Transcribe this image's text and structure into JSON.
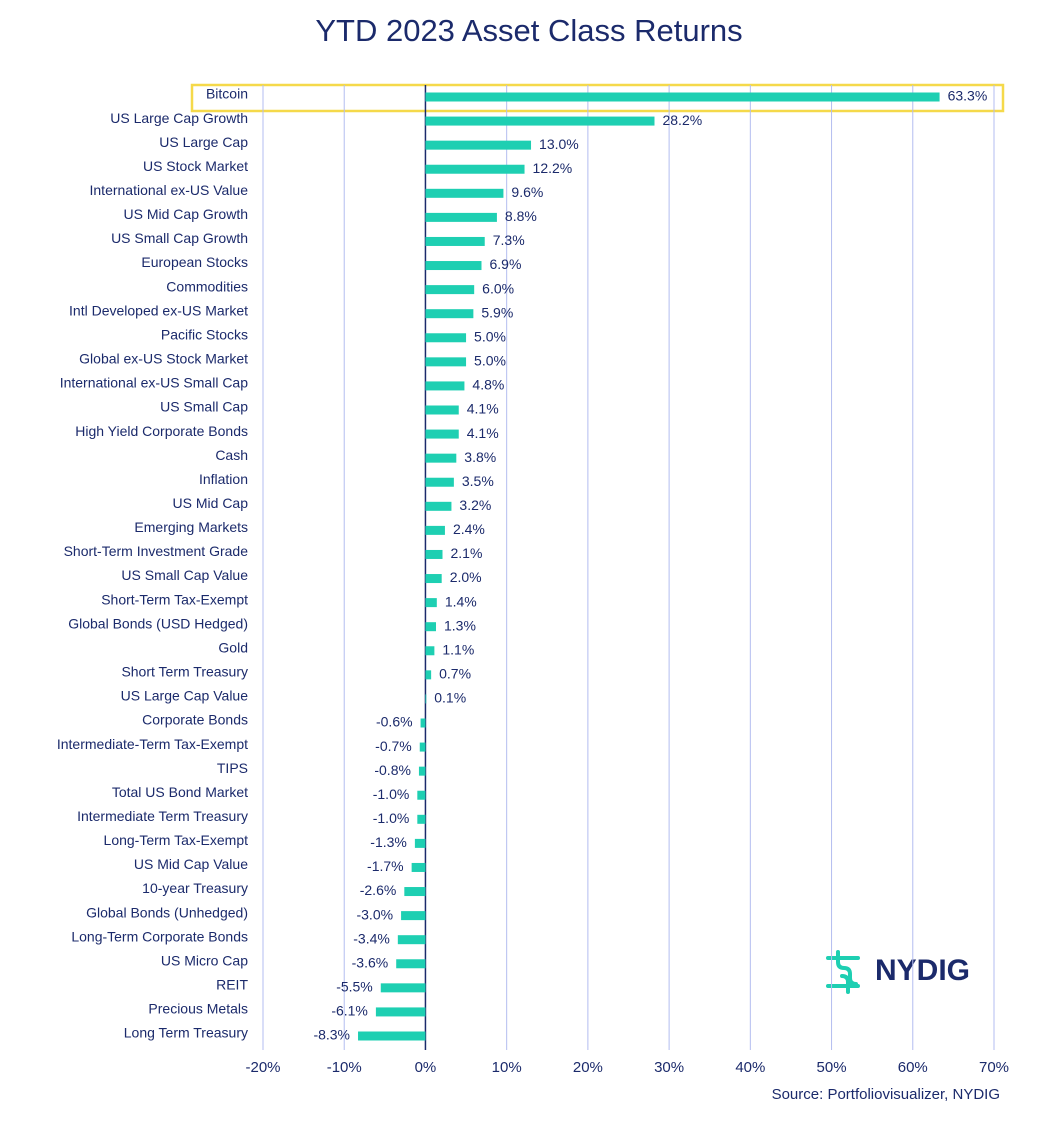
{
  "chart_data": {
    "type": "bar",
    "orientation": "horizontal",
    "title": "YTD 2023 Asset Class Returns",
    "categories": [
      "Bitcoin",
      "US Large Cap Growth",
      "US Large Cap",
      "US Stock Market",
      "International ex-US Value",
      "US Mid Cap Growth",
      "US Small Cap Growth",
      "European Stocks",
      "Commodities",
      "Intl Developed ex-US Market",
      "Pacific Stocks",
      "Global ex-US Stock Market",
      "International ex-US Small Cap",
      "US Small Cap",
      "High Yield Corporate Bonds",
      "Cash",
      "Inflation",
      "US Mid Cap",
      "Emerging Markets",
      "Short-Term Investment Grade",
      "US Small Cap Value",
      "Short-Term Tax-Exempt",
      "Global Bonds (USD Hedged)",
      "Gold",
      "Short Term Treasury",
      "US Large Cap Value",
      "Corporate Bonds",
      "Intermediate-Term Tax-Exempt",
      "TIPS",
      "Total US Bond Market",
      "Intermediate Term Treasury",
      "Long-Term Tax-Exempt",
      "US Mid Cap Value",
      "10-year Treasury",
      "Global Bonds (Unhedged)",
      "Long-Term Corporate Bonds",
      "US Micro Cap",
      "REIT",
      "Precious Metals",
      "Long Term Treasury"
    ],
    "values": [
      63.3,
      28.2,
      13.0,
      12.2,
      9.6,
      8.8,
      7.3,
      6.9,
      6.0,
      5.9,
      5.0,
      5.0,
      4.8,
      4.1,
      4.1,
      3.8,
      3.5,
      3.2,
      2.4,
      2.1,
      2.0,
      1.4,
      1.3,
      1.1,
      0.7,
      0.1,
      -0.6,
      -0.7,
      -0.8,
      -1.0,
      -1.0,
      -1.3,
      -1.7,
      -2.6,
      -3.0,
      -3.4,
      -3.6,
      -5.5,
      -6.1,
      -8.3
    ],
    "value_labels": [
      "63.3%",
      "28.2%",
      "13.0%",
      "12.2%",
      "9.6%",
      "8.8%",
      "7.3%",
      "6.9%",
      "6.0%",
      "5.9%",
      "5.0%",
      "5.0%",
      "4.8%",
      "4.1%",
      "4.1%",
      "3.8%",
      "3.5%",
      "3.2%",
      "2.4%",
      "2.1%",
      "2.0%",
      "1.4%",
      "1.3%",
      "1.1%",
      "0.7%",
      "0.1%",
      "-0.6%",
      "-0.7%",
      "-0.8%",
      "-1.0%",
      "-1.0%",
      "-1.3%",
      "-1.7%",
      "-2.6%",
      "-3.0%",
      "-3.4%",
      "-3.6%",
      "-5.5%",
      "-6.1%",
      "-8.3%"
    ],
    "color": "#1ecfb2",
    "xlim": [
      -20,
      70
    ],
    "xticks": [
      {
        "value": -20,
        "label": "-20%"
      },
      {
        "value": -10,
        "label": "-10%"
      },
      {
        "value": 0,
        "label": "0%"
      },
      {
        "value": 10,
        "label": "10%"
      },
      {
        "value": 20,
        "label": "20%"
      },
      {
        "value": 30,
        "label": "30%"
      },
      {
        "value": 40,
        "label": "40%"
      },
      {
        "value": 50,
        "label": "50%"
      },
      {
        "value": 60,
        "label": "60%"
      },
      {
        "value": 70,
        "label": "70%"
      }
    ],
    "grid": true,
    "source": "Source: Portfoliovisualizer, NYDIG",
    "logo": "NYDIG"
  }
}
